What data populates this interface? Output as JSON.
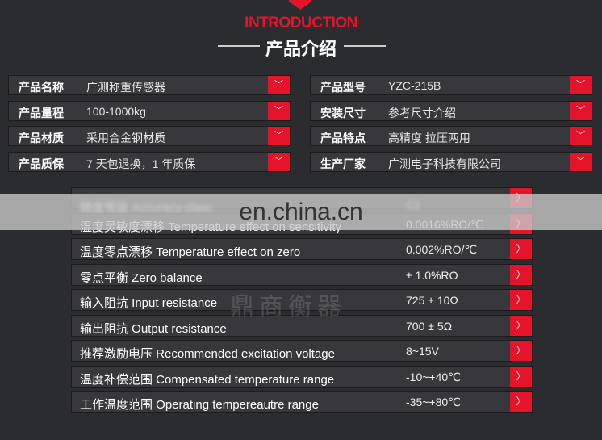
{
  "header": {
    "intro": "INTRODUCTION",
    "title": "产品介绍"
  },
  "product_info": {
    "left": [
      {
        "label": "产品名称",
        "value": "广测称重传感器"
      },
      {
        "label": "产品量程",
        "value": "100-1000kg"
      },
      {
        "label": "产品材质",
        "value": "采用合金钢材质"
      },
      {
        "label": "产品质保",
        "value": "7 天包退换，1 年质保"
      }
    ],
    "right": [
      {
        "label": "产品型号",
        "value": "YZC-215B"
      },
      {
        "label": "安装尺寸",
        "value": "参考尺寸介绍"
      },
      {
        "label": "产品特点",
        "value": "高精度 拉压两用"
      },
      {
        "label": "生产厂家",
        "value": "广测电子科技有限公司"
      }
    ],
    "toggle_icon": "chevron-down"
  },
  "specs": [
    {
      "label": "精度等级 Accuracy class",
      "value": "C2"
    },
    {
      "label": "温度灵敏度漂移 Temperature effect on sensitivity",
      "value": "0.0016%RO/℃"
    },
    {
      "label": "温度零点漂移 Temperature effect on zero",
      "value": "0.002%RO/℃"
    },
    {
      "label": "零点平衡 Zero  balance",
      "value": "± 1.0%RO"
    },
    {
      "label": "输入阻抗 Input resistance",
      "value": "725 ± 10Ω"
    },
    {
      "label": "输出阻抗 Output resistance",
      "value": "700 ± 5Ω"
    },
    {
      "label": "推荐激励电压 Recommended excitation voltage",
      "value": "8~15V"
    },
    {
      "label": "温度补偿范围 Compensated temperature range",
      "value": "-10~+40℃"
    },
    {
      "label": "工作温度范围 Operating tempereautre range",
      "value": "-35~+80℃"
    }
  ],
  "watermark": {
    "site": "en.china.cn",
    "logo": "鼎商衡器"
  },
  "colors": {
    "accent": "#e5142a",
    "background": "#2b2c30",
    "row": "#38383c"
  }
}
